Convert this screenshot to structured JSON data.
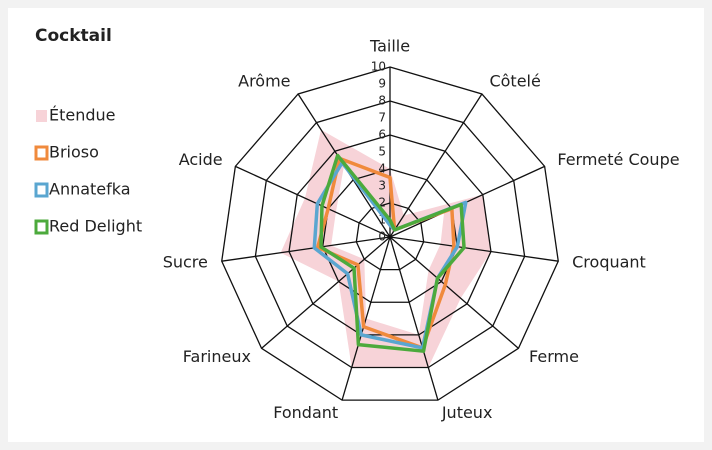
{
  "chart_data": {
    "type": "radar",
    "title": "Cocktail",
    "categories": [
      "Taille",
      "Côtelé",
      "Fermeté Coupe",
      "Croquant",
      "Ferme",
      "Juteux",
      "Fondant",
      "Farineux",
      "Sucre",
      "Acide",
      "Arôme"
    ],
    "rlim": [
      0,
      10
    ],
    "rticks": [
      0,
      1,
      2,
      3,
      4,
      5,
      6,
      7,
      8,
      9,
      10
    ],
    "grid_rings": [
      2,
      4,
      6,
      8,
      10
    ],
    "band": {
      "name": "Étendue",
      "color": "#f7d3d8",
      "values": [
        [
          0.5,
          4
        ],
        [
          0.3,
          1.5
        ],
        [
          3.5,
          6
        ],
        [
          3,
          6
        ],
        [
          3,
          5.5
        ],
        [
          6,
          8
        ],
        [
          5,
          8
        ],
        [
          2,
          4
        ],
        [
          3.5,
          6.5
        ],
        [
          3.5,
          5.5
        ],
        [
          5,
          7.5
        ]
      ]
    },
    "series": [
      {
        "name": "Brioso",
        "color": "#f08a3c",
        "values": [
          3.5,
          0.5,
          4.0,
          3.8,
          4.3,
          6.8,
          5.5,
          2.5,
          4.3,
          4.0,
          5.5
        ]
      },
      {
        "name": "Annatefka",
        "color": "#5aa6d0",
        "values": [
          0.7,
          0.5,
          4.9,
          4.0,
          3.7,
          6.8,
          6.0,
          3.3,
          4.5,
          4.7,
          5.2
        ]
      },
      {
        "name": "Red Delight",
        "color": "#4caa3c",
        "values": [
          1.0,
          0.5,
          4.6,
          4.4,
          3.7,
          7.0,
          6.6,
          2.8,
          4.1,
          4.4,
          5.7
        ]
      }
    ]
  }
}
